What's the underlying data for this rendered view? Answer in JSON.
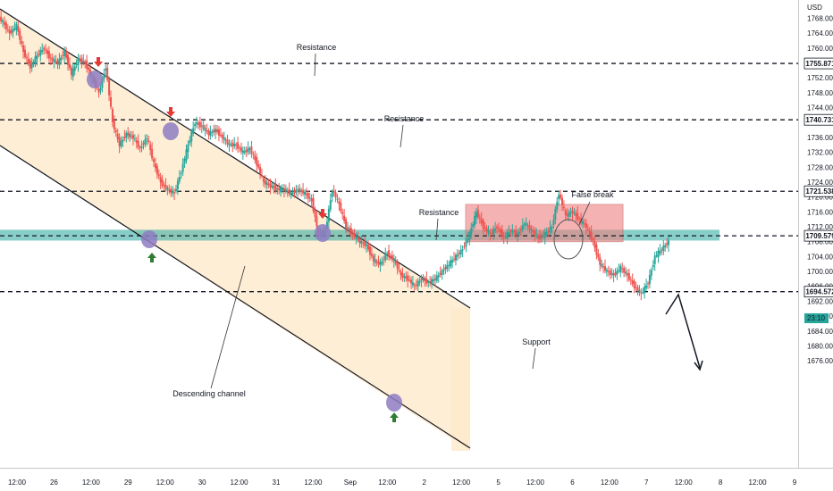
{
  "chart_data": {
    "type": "candlestick",
    "currency_label": "USD",
    "colors": {
      "up": "#26a69a",
      "down": "#ef5350",
      "zone": "#26a69a",
      "box": "#f08080",
      "marker": "#8e7cc3"
    },
    "y_ticks": [
      "1768.000",
      "1764.000",
      "1760.000",
      "1756.000",
      "1752.000",
      "1748.000",
      "1744.000",
      "1740.000",
      "1736.000",
      "1732.000",
      "1728.000",
      "1724.000",
      "1720.000",
      "1716.000",
      "1712.000",
      "1708.000",
      "1704.000",
      "1700.000",
      "1696.000",
      "1692.000",
      "1688.000",
      "1684.000",
      "1680.000",
      "1676.000"
    ],
    "x_ticks": [
      "12:00",
      "26",
      "12:00",
      "29",
      "12:00",
      "30",
      "12:00",
      "31",
      "12:00",
      "Sep",
      "12:00",
      "2",
      "12:00",
      "5",
      "12:00",
      "6",
      "12:00",
      "7",
      "12:00",
      "8",
      "12:00",
      "9"
    ],
    "price_labels": [
      {
        "label": "1755.871",
        "value": 1755.871
      },
      {
        "label": "1740.731",
        "value": 1740.731
      },
      {
        "label": "1721.538",
        "value": 1721.538
      },
      {
        "label": "1709.579",
        "value": 1709.579
      },
      {
        "label": "1694.572",
        "value": 1694.572
      }
    ],
    "countdown_label": "23:10",
    "horizontal_levels": [
      1755.871,
      1740.731,
      1721.538,
      1709.579,
      1694.572
    ],
    "zone": {
      "low": 1708.3,
      "high": 1711.2
    },
    "false_break_box": {
      "low": 1708.0,
      "high": 1718.0
    },
    "annotations": {
      "resistance_1": "Resistance",
      "resistance_2": "Resistance",
      "resistance_3": "Resistance",
      "support": "Support",
      "false_break": "False break",
      "channel": "Descending channel"
    },
    "closes": [
      1767.0,
      1764.0,
      1766.0,
      1759.0,
      1755.0,
      1758.0,
      1760.0,
      1757.0,
      1756.0,
      1759.0,
      1753.0,
      1757.0,
      1756.0,
      1752.0,
      1748.0,
      1755.0,
      1740.0,
      1734.0,
      1737.0,
      1736.0,
      1733.0,
      1736.0,
      1729.0,
      1724.0,
      1722.0,
      1721.0,
      1727.0,
      1734.0,
      1740.0,
      1739.0,
      1737.0,
      1738.0,
      1736.0,
      1734.0,
      1734.0,
      1732.0,
      1733.0,
      1729.0,
      1724.0,
      1723.0,
      1722.0,
      1722.0,
      1721.0,
      1722.0,
      1721.0,
      1719.0,
      1710.0,
      1711.0,
      1722.0,
      1718.0,
      1712.0,
      1710.0,
      1708.0,
      1707.0,
      1703.0,
      1702.0,
      1705.0,
      1703.0,
      1699.0,
      1698.0,
      1696.0,
      1698.0,
      1697.0,
      1698.0,
      1700.0,
      1702.0,
      1704.0,
      1706.0,
      1710.0,
      1716.0,
      1712.0,
      1710.0,
      1712.0,
      1709.0,
      1711.0,
      1710.0,
      1713.0,
      1711.0,
      1709.0,
      1710.0,
      1712.0,
      1721.0,
      1715.0,
      1716.0,
      1714.0,
      1712.0,
      1708.0,
      1702.0,
      1700.0,
      1699.0,
      1701.0,
      1699.0,
      1696.0,
      1694.0,
      1697.0,
      1704.0,
      1706.0,
      1708.0
    ]
  }
}
